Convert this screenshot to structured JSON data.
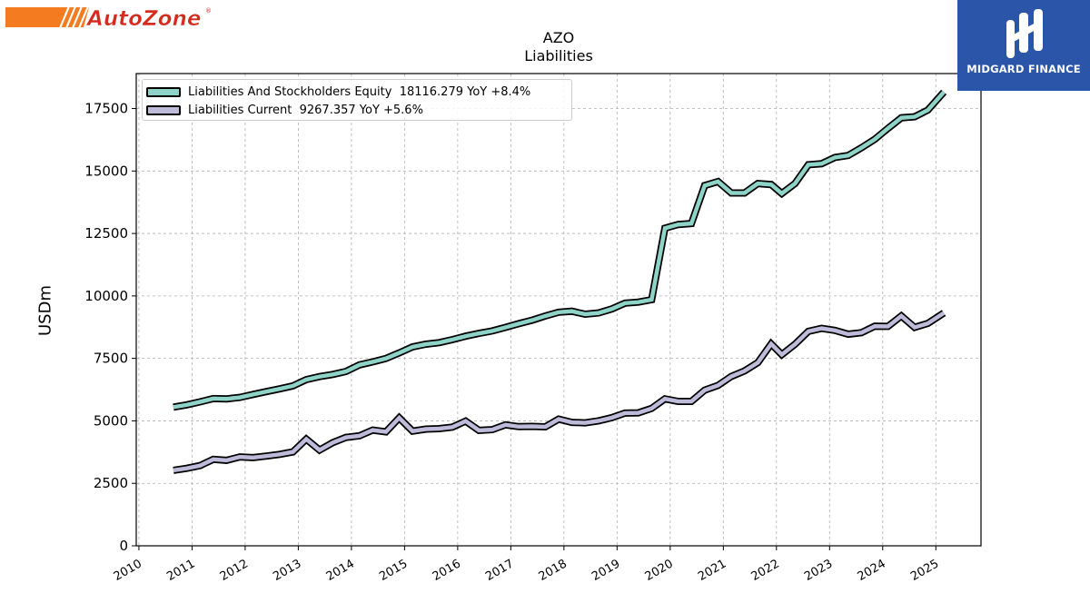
{
  "branding": {
    "left_logo_text": "AutoZone",
    "right_logo_text": "MIDGARD FINANCE",
    "right_logo_color": "#2a55a8",
    "left_logo_colors": [
      "#f47b20",
      "#d52b1e"
    ]
  },
  "chart_data": {
    "type": "line",
    "title": "AZO",
    "subtitle": "Liabilities",
    "ylabel": "USDm",
    "xlabel": "",
    "xlim": [
      2009.95,
      2025.85
    ],
    "ylim": [
      0,
      18900
    ],
    "x_ticks": [
      2010,
      2011,
      2012,
      2013,
      2014,
      2015,
      2016,
      2017,
      2018,
      2019,
      2020,
      2021,
      2022,
      2023,
      2024,
      2025
    ],
    "y_ticks": [
      0,
      2500,
      5000,
      7500,
      10000,
      12500,
      15000,
      17500
    ],
    "grid": true,
    "legend_position": "top-left",
    "series": [
      {
        "name": "Liabilities And Stockholders Equity  18116.279 YoY +8.4%",
        "color": "#8dd3c7",
        "points": [
          [
            2010.65,
            5550
          ],
          [
            2010.9,
            5640
          ],
          [
            2011.15,
            5760
          ],
          [
            2011.4,
            5890
          ],
          [
            2011.65,
            5880
          ],
          [
            2011.9,
            5940
          ],
          [
            2012.15,
            6060
          ],
          [
            2012.4,
            6170
          ],
          [
            2012.65,
            6280
          ],
          [
            2012.9,
            6400
          ],
          [
            2013.15,
            6650
          ],
          [
            2013.4,
            6770
          ],
          [
            2013.65,
            6860
          ],
          [
            2013.9,
            6980
          ],
          [
            2014.15,
            7240
          ],
          [
            2014.4,
            7360
          ],
          [
            2014.65,
            7500
          ],
          [
            2014.9,
            7720
          ],
          [
            2015.15,
            7960
          ],
          [
            2015.4,
            8070
          ],
          [
            2015.65,
            8130
          ],
          [
            2015.9,
            8250
          ],
          [
            2016.15,
            8390
          ],
          [
            2016.4,
            8500
          ],
          [
            2016.65,
            8600
          ],
          [
            2016.9,
            8740
          ],
          [
            2017.15,
            8890
          ],
          [
            2017.4,
            9030
          ],
          [
            2017.65,
            9200
          ],
          [
            2017.9,
            9350
          ],
          [
            2018.15,
            9390
          ],
          [
            2018.4,
            9270
          ],
          [
            2018.65,
            9320
          ],
          [
            2018.9,
            9480
          ],
          [
            2019.15,
            9710
          ],
          [
            2019.4,
            9750
          ],
          [
            2019.65,
            9850
          ],
          [
            2019.9,
            12710
          ],
          [
            2020.15,
            12860
          ],
          [
            2020.4,
            12900
          ],
          [
            2020.65,
            14420
          ],
          [
            2020.9,
            14580
          ],
          [
            2021.15,
            14120
          ],
          [
            2021.4,
            14120
          ],
          [
            2021.65,
            14500
          ],
          [
            2021.9,
            14460
          ],
          [
            2022.1,
            14100
          ],
          [
            2022.35,
            14500
          ],
          [
            2022.6,
            15250
          ],
          [
            2022.85,
            15290
          ],
          [
            2023.1,
            15540
          ],
          [
            2023.35,
            15620
          ],
          [
            2023.6,
            15930
          ],
          [
            2023.85,
            16270
          ],
          [
            2024.1,
            16710
          ],
          [
            2024.35,
            17130
          ],
          [
            2024.6,
            17170
          ],
          [
            2024.85,
            17440
          ],
          [
            2025.15,
            18160
          ]
        ]
      },
      {
        "name": "Liabilities Current  9267.357 YoY +5.6%",
        "color": "#bebada",
        "points": [
          [
            2010.65,
            3020
          ],
          [
            2010.9,
            3100
          ],
          [
            2011.15,
            3210
          ],
          [
            2011.4,
            3460
          ],
          [
            2011.65,
            3420
          ],
          [
            2011.9,
            3560
          ],
          [
            2012.15,
            3530
          ],
          [
            2012.4,
            3590
          ],
          [
            2012.65,
            3660
          ],
          [
            2012.9,
            3760
          ],
          [
            2013.15,
            4270
          ],
          [
            2013.4,
            3830
          ],
          [
            2013.65,
            4130
          ],
          [
            2013.9,
            4340
          ],
          [
            2014.15,
            4400
          ],
          [
            2014.4,
            4630
          ],
          [
            2014.65,
            4560
          ],
          [
            2014.9,
            5120
          ],
          [
            2015.15,
            4590
          ],
          [
            2015.4,
            4670
          ],
          [
            2015.65,
            4690
          ],
          [
            2015.9,
            4750
          ],
          [
            2016.15,
            4990
          ],
          [
            2016.4,
            4620
          ],
          [
            2016.65,
            4650
          ],
          [
            2016.9,
            4840
          ],
          [
            2017.15,
            4770
          ],
          [
            2017.4,
            4780
          ],
          [
            2017.65,
            4760
          ],
          [
            2017.9,
            5070
          ],
          [
            2018.15,
            4940
          ],
          [
            2018.4,
            4920
          ],
          [
            2018.65,
            5000
          ],
          [
            2018.9,
            5130
          ],
          [
            2019.15,
            5310
          ],
          [
            2019.4,
            5320
          ],
          [
            2019.65,
            5500
          ],
          [
            2019.9,
            5880
          ],
          [
            2020.15,
            5780
          ],
          [
            2020.4,
            5780
          ],
          [
            2020.65,
            6230
          ],
          [
            2020.9,
            6420
          ],
          [
            2021.15,
            6780
          ],
          [
            2021.4,
            7000
          ],
          [
            2021.65,
            7330
          ],
          [
            2021.9,
            8080
          ],
          [
            2022.1,
            7650
          ],
          [
            2022.35,
            8070
          ],
          [
            2022.6,
            8580
          ],
          [
            2022.85,
            8700
          ],
          [
            2023.1,
            8620
          ],
          [
            2023.35,
            8470
          ],
          [
            2023.6,
            8530
          ],
          [
            2023.85,
            8790
          ],
          [
            2024.1,
            8780
          ],
          [
            2024.35,
            9200
          ],
          [
            2024.6,
            8740
          ],
          [
            2024.85,
            8900
          ],
          [
            2025.15,
            9320
          ]
        ]
      }
    ]
  }
}
